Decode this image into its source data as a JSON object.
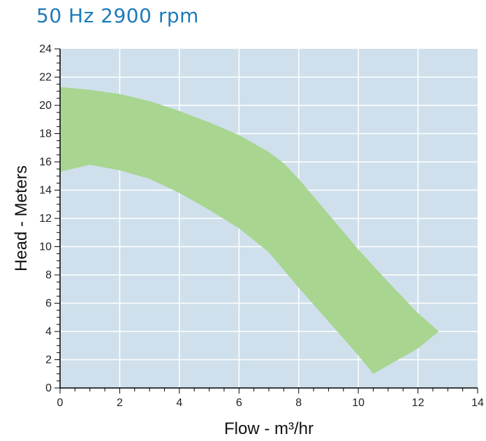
{
  "title": "50 Hz 2900 rpm",
  "colors": {
    "plot_bg": "#cfe0ec",
    "grid": "#ffffff",
    "band": "#a8d590",
    "axis": "#000000",
    "title": "#1f7ab8"
  },
  "chart_data": {
    "type": "area",
    "title": "50 Hz 2900 rpm",
    "xlabel": "Flow - m³/hr",
    "ylabel": "Head - Meters",
    "xlim": [
      0,
      14
    ],
    "ylim": [
      0,
      24
    ],
    "x_ticks": [
      0,
      2,
      4,
      6,
      8,
      10,
      12,
      14
    ],
    "y_ticks": [
      0,
      2,
      4,
      6,
      8,
      10,
      12,
      14,
      16,
      18,
      20,
      22,
      24
    ],
    "grid": true,
    "series": [
      {
        "upper": [
          {
            "x": 0,
            "y": 21.3
          },
          {
            "x": 1,
            "y": 21.1
          },
          {
            "x": 2,
            "y": 20.8
          },
          {
            "x": 3,
            "y": 20.3
          },
          {
            "x": 4,
            "y": 19.6
          },
          {
            "x": 5,
            "y": 18.8
          },
          {
            "x": 6,
            "y": 17.9
          },
          {
            "x": 7,
            "y": 16.7
          },
          {
            "x": 7.5,
            "y": 15.9
          },
          {
            "x": 8,
            "y": 14.8
          },
          {
            "x": 9,
            "y": 12.3
          },
          {
            "x": 10,
            "y": 9.8
          },
          {
            "x": 11,
            "y": 7.5
          },
          {
            "x": 12,
            "y": 5.3
          },
          {
            "x": 12.7,
            "y": 4.0
          }
        ],
        "lower": [
          {
            "x": 0,
            "y": 15.3
          },
          {
            "x": 1,
            "y": 15.8
          },
          {
            "x": 2,
            "y": 15.4
          },
          {
            "x": 3,
            "y": 14.8
          },
          {
            "x": 4,
            "y": 13.8
          },
          {
            "x": 5,
            "y": 12.6
          },
          {
            "x": 6,
            "y": 11.3
          },
          {
            "x": 7,
            "y": 9.6
          },
          {
            "x": 8,
            "y": 7.1
          },
          {
            "x": 9,
            "y": 4.7
          },
          {
            "x": 10,
            "y": 2.3
          },
          {
            "x": 10.5,
            "y": 1.0
          },
          {
            "x": 12,
            "y": 2.8
          },
          {
            "x": 12.7,
            "y": 4.0
          }
        ]
      }
    ]
  }
}
